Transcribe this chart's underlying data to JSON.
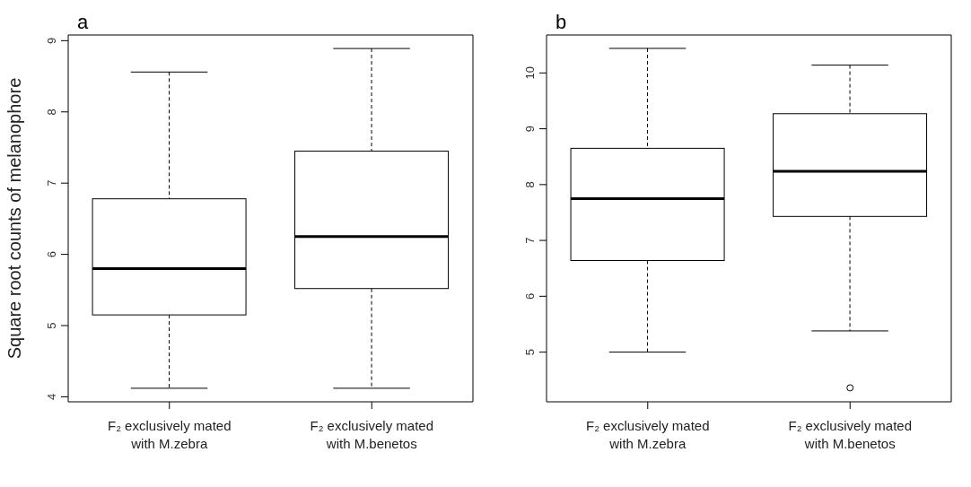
{
  "chart_data": [
    {
      "type": "box",
      "title": "a",
      "ylabel": "Square root counts of melanophore",
      "categories": [
        "F₂ exclusively mated\nwith M.zebra",
        "F₂ exclusively mated\nwith M.benetos"
      ],
      "ylim": [
        3.93,
        9.08
      ],
      "yticks": [
        4,
        5,
        6,
        7,
        8,
        9
      ],
      "boxes": [
        {
          "low": 4.12,
          "q1": 5.15,
          "median": 5.8,
          "q3": 6.78,
          "high": 8.56
        },
        {
          "low": 4.12,
          "q1": 5.52,
          "median": 6.25,
          "q3": 7.45,
          "high": 8.89
        }
      ]
    },
    {
      "type": "box",
      "title": "b",
      "categories": [
        "F₂ exclusively mated\nwith M.zebra",
        "F₂ exclusively mated\nwith M.benetos"
      ],
      "ylim": [
        4.11,
        10.68
      ],
      "yticks": [
        5,
        6,
        7,
        8,
        9,
        10
      ],
      "boxes": [
        {
          "low": 5.0,
          "q1": 6.64,
          "median": 7.75,
          "q3": 8.65,
          "high": 10.44
        },
        {
          "low": 5.38,
          "q1": 7.43,
          "median": 8.24,
          "q3": 9.27,
          "high": 10.14,
          "outliers": [
            4.36
          ]
        }
      ]
    }
  ]
}
